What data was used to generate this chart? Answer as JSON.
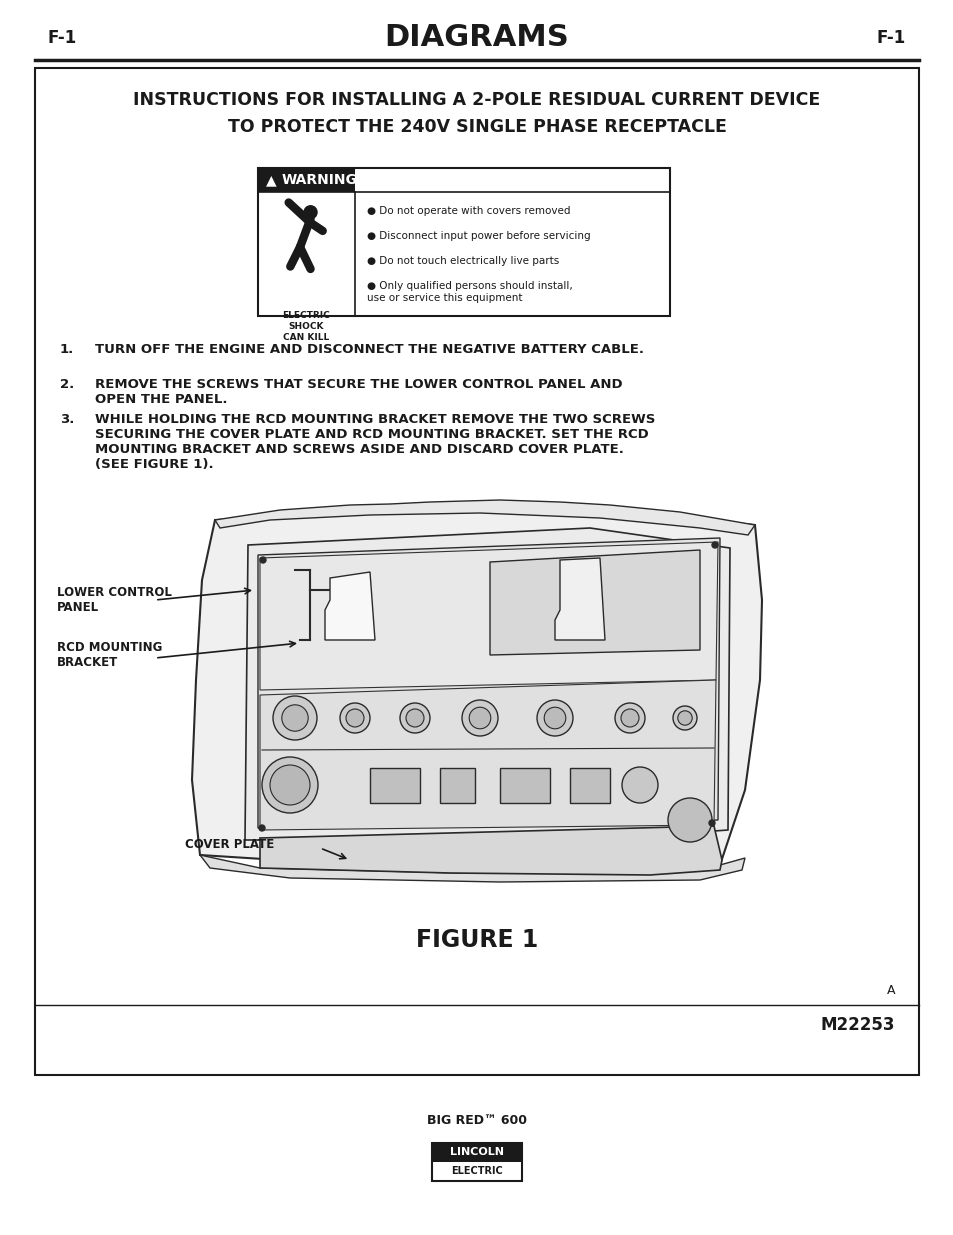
{
  "page_bg": "#ffffff",
  "header_text": "DIAGRAMS",
  "header_side": "F-1",
  "header_color": "#1a1a1a",
  "box_title_line1": "INSTRUCTIONS FOR INSTALLING A 2-POLE RESIDUAL CURRENT DEVICE",
  "box_title_line2": "TO PROTECT THE 240V SINGLE PHASE RECEPTACLE",
  "warning_title": "WARNING",
  "warning_lines": [
    "Do not operate with covers removed",
    "Disconnect input power before servicing",
    "Do not touch electrically live parts",
    "Only qualified persons should install,\nuse or service this equipment"
  ],
  "electric_shock_text": "ELECTRIC\nSHOCK\nCAN KILL",
  "instructions": [
    "TURN OFF THE ENGINE AND DISCONNECT THE NEGATIVE BATTERY CABLE.",
    "REMOVE THE SCREWS THAT SECURE THE LOWER CONTROL PANEL AND\nOPEN THE PANEL.",
    "WHILE HOLDING THE RCD MOUNTING BRACKET REMOVE THE TWO SCREWS\nSECURING THE COVER PLATE AND RCD MOUNTING BRACKET. SET THE RCD\nMOUNTING BRACKET AND SCREWS ASIDE AND DISCARD COVER PLATE.\n(SEE FIGURE 1)."
  ],
  "label_lower_control": "LOWER CONTROL\nPANEL",
  "label_rcd": "RCD MOUNTING\nBRACKET",
  "label_cover": "COVER PLATE",
  "figure_caption": "FIGURE 1",
  "part_number": "M22253",
  "corner_letter": "A",
  "product_name": "BIG RED™ 600",
  "box_border_color": "#1a1a1a",
  "text_color": "#1a1a1a"
}
